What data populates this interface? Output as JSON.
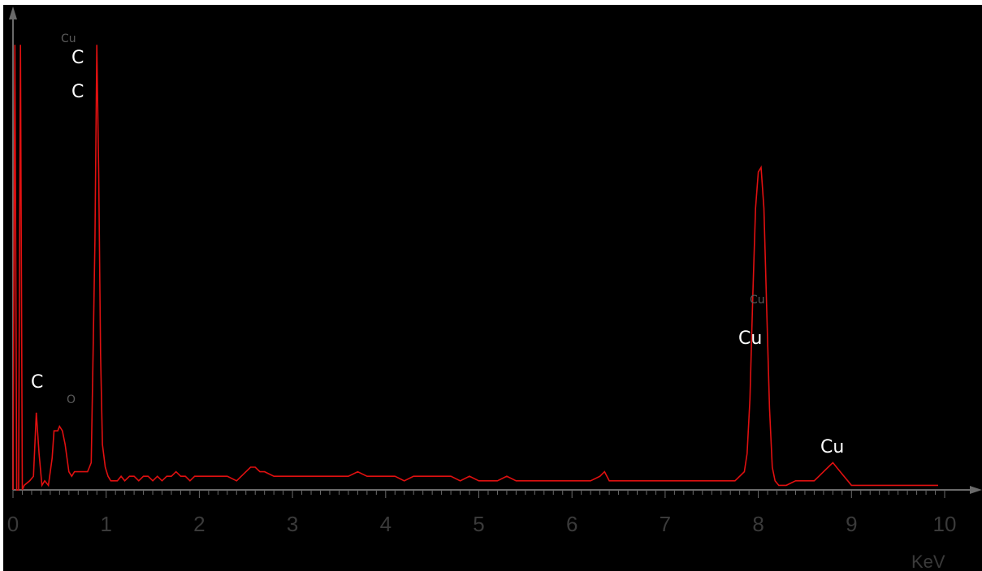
{
  "chart_data": {
    "type": "line",
    "title": "",
    "xlabel": "",
    "ylabel": "",
    "x_unit": "KeV",
    "xlim": [
      0,
      10
    ],
    "x_ticks": [
      "0",
      "1",
      "2",
      "3",
      "4",
      "5",
      "6",
      "7",
      "8",
      "9",
      "10"
    ],
    "grid": false,
    "legend": "none",
    "line_color": "#e01010",
    "background": "#000000",
    "series": [
      {
        "x": [
          0.0,
          0.02,
          0.04,
          0.06,
          0.08,
          0.1,
          0.12,
          0.18,
          0.22,
          0.25,
          0.28,
          0.31,
          0.34,
          0.38,
          0.42,
          0.44,
          0.46,
          0.48,
          0.5,
          0.53,
          0.56,
          0.58,
          0.6,
          0.63,
          0.66,
          0.7,
          0.75,
          0.78,
          0.8,
          0.82,
          0.84,
          0.86,
          0.88,
          0.9,
          0.92,
          0.94,
          0.96,
          0.99,
          1.02,
          1.05,
          1.08,
          1.12,
          1.16,
          1.2,
          1.25,
          1.3,
          1.35,
          1.4,
          1.45,
          1.5,
          1.55,
          1.6,
          1.65,
          1.7,
          1.75,
          1.8,
          1.85,
          1.9,
          1.95,
          2.0,
          2.1,
          2.2,
          2.3,
          2.4,
          2.5,
          2.55,
          2.6,
          2.65,
          2.7,
          2.8,
          2.9,
          3.0,
          3.1,
          3.2,
          3.3,
          3.4,
          3.5,
          3.6,
          3.7,
          3.8,
          3.9,
          4.0,
          4.1,
          4.2,
          4.3,
          4.4,
          4.5,
          4.6,
          4.7,
          4.8,
          4.9,
          5.0,
          5.1,
          5.2,
          5.3,
          5.4,
          5.5,
          5.6,
          5.7,
          5.8,
          5.9,
          6.0,
          6.1,
          6.2,
          6.3,
          6.35,
          6.4,
          6.5,
          6.6,
          6.7,
          6.8,
          6.9,
          7.0,
          7.1,
          7.2,
          7.3,
          7.4,
          7.5,
          7.6,
          7.7,
          7.75,
          7.8,
          7.85,
          7.88,
          7.91,
          7.94,
          7.97,
          8.0,
          8.03,
          8.06,
          8.09,
          8.12,
          8.15,
          8.18,
          8.22,
          8.3,
          8.4,
          8.5,
          8.6,
          8.65,
          8.7,
          8.75,
          8.8,
          8.84,
          8.88,
          8.92,
          8.96,
          9.0,
          9.05,
          9.1,
          9.2,
          9.4,
          9.6,
          9.8,
          9.93
        ],
        "y": [
          0,
          98,
          0,
          0,
          98,
          0,
          1,
          2,
          3,
          17,
          8,
          1,
          2,
          1,
          7,
          13,
          13,
          13,
          14,
          13,
          10,
          7,
          4,
          3,
          4,
          4,
          4,
          4,
          4,
          5,
          6,
          30,
          55,
          98,
          70,
          30,
          10,
          5,
          3,
          2,
          2,
          2,
          3,
          2,
          3,
          3,
          2,
          3,
          3,
          2,
          3,
          2,
          3,
          3,
          4,
          3,
          3,
          2,
          3,
          3,
          3,
          3,
          3,
          2,
          4,
          5,
          5,
          4,
          4,
          3,
          3,
          3,
          3,
          3,
          3,
          3,
          3,
          3,
          4,
          3,
          3,
          3,
          3,
          2,
          3,
          3,
          3,
          3,
          3,
          2,
          3,
          2,
          2,
          2,
          3,
          2,
          2,
          2,
          2,
          2,
          2,
          2,
          2,
          2,
          3,
          4,
          2,
          2,
          2,
          2,
          2,
          2,
          2,
          2,
          2,
          2,
          2,
          2,
          2,
          2,
          2,
          3,
          4,
          8,
          20,
          42,
          62,
          70,
          71,
          62,
          40,
          18,
          5,
          2,
          1,
          1,
          2,
          2,
          2,
          3,
          4,
          5,
          6,
          5,
          4,
          3,
          2,
          1,
          1,
          1,
          1,
          1,
          1,
          1,
          1
        ]
      }
    ],
    "annotations": [
      {
        "text": "Cu",
        "x": 0.6,
        "size": "small"
      },
      {
        "text": "C",
        "x": 0.72,
        "size": "big"
      },
      {
        "text": "C",
        "x": 0.72,
        "size": "big"
      },
      {
        "text": "C",
        "x": 0.28,
        "size": "big"
      },
      {
        "text": "O",
        "x": 0.65,
        "size": "small"
      },
      {
        "text": "Cu",
        "x": 8.05,
        "size": "small"
      },
      {
        "text": "Cu",
        "x": 8.0,
        "size": "big"
      },
      {
        "text": "Cu",
        "x": 8.8,
        "size": "big"
      }
    ]
  }
}
